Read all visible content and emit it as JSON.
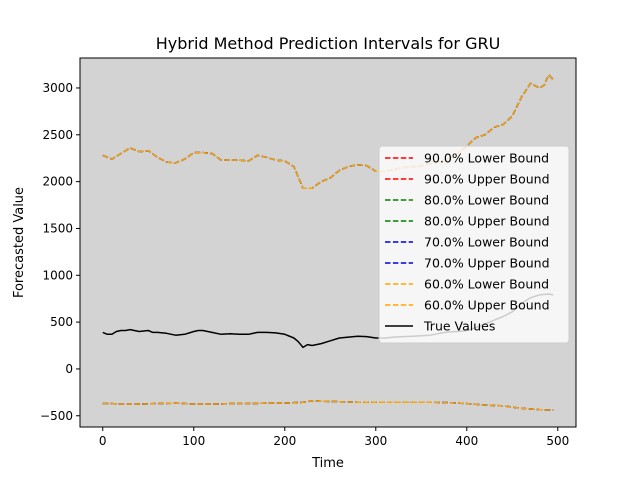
{
  "chart_data": {
    "type": "line",
    "title": "Hybrid Method Prediction Intervals for GRU",
    "xlabel": "Time",
    "ylabel": "Forecasted Value",
    "xlim": [
      -25,
      520
    ],
    "ylim": [
      -620,
      3320
    ],
    "xticks": [
      0,
      100,
      200,
      300,
      400,
      500
    ],
    "yticks": [
      -500,
      0,
      500,
      1000,
      1500,
      2000,
      2500,
      3000
    ],
    "background": "#d3d3d3",
    "grid": false,
    "legend_position": "right",
    "upper_bound_x": [
      0,
      10,
      20,
      30,
      40,
      50,
      60,
      70,
      80,
      90,
      100,
      110,
      120,
      130,
      140,
      150,
      160,
      170,
      180,
      190,
      200,
      210,
      220,
      230,
      240,
      250,
      260,
      270,
      280,
      290,
      300,
      310,
      320,
      330,
      340,
      350,
      360,
      370,
      380,
      390,
      400,
      410,
      420,
      430,
      440,
      450,
      460,
      470,
      480,
      485,
      490,
      495
    ],
    "upper_bound_y": [
      2280,
      2240,
      2300,
      2360,
      2320,
      2330,
      2260,
      2210,
      2200,
      2240,
      2310,
      2310,
      2300,
      2230,
      2230,
      2230,
      2220,
      2280,
      2260,
      2230,
      2220,
      2160,
      1930,
      1930,
      2000,
      2040,
      2120,
      2160,
      2180,
      2170,
      2110,
      2110,
      2130,
      2150,
      2160,
      2170,
      2190,
      2210,
      2240,
      2300,
      2380,
      2470,
      2500,
      2580,
      2610,
      2700,
      2900,
      3050,
      3000,
      3030,
      3140,
      3090
    ],
    "lower_bound_x": [
      0,
      10,
      20,
      40,
      60,
      80,
      100,
      120,
      140,
      160,
      180,
      200,
      220,
      230,
      240,
      260,
      280,
      300,
      320,
      340,
      360,
      380,
      400,
      420,
      440,
      460,
      480,
      495
    ],
    "lower_bound_y": [
      -370,
      -370,
      -375,
      -375,
      -370,
      -365,
      -375,
      -375,
      -370,
      -370,
      -365,
      -365,
      -355,
      -340,
      -345,
      -350,
      -355,
      -355,
      -355,
      -355,
      -355,
      -360,
      -370,
      -385,
      -395,
      -420,
      -435,
      -440
    ],
    "series": [
      {
        "name": "90.0% Lower Bound",
        "color": "#ff0000",
        "style": "dashed",
        "bound": "lower"
      },
      {
        "name": "90.0% Upper Bound",
        "color": "#ff0000",
        "style": "dashed",
        "bound": "upper"
      },
      {
        "name": "80.0% Lower Bound",
        "color": "#008000",
        "style": "dashed",
        "bound": "lower"
      },
      {
        "name": "80.0% Upper Bound",
        "color": "#008000",
        "style": "dashed",
        "bound": "upper"
      },
      {
        "name": "70.0% Lower Bound",
        "color": "#0000cd",
        "style": "dashed",
        "bound": "lower"
      },
      {
        "name": "70.0% Upper Bound",
        "color": "#0000cd",
        "style": "dashed",
        "bound": "upper"
      },
      {
        "name": "60.0% Lower Bound",
        "color": "#ffa500",
        "style": "dashed",
        "bound": "lower"
      },
      {
        "name": "60.0% Upper Bound",
        "color": "#ffa500",
        "style": "dashed",
        "bound": "upper"
      },
      {
        "name": "True Values",
        "color": "#000000",
        "style": "solid",
        "x": [
          0,
          5,
          10,
          15,
          20,
          25,
          30,
          40,
          50,
          55,
          60,
          70,
          80,
          90,
          100,
          105,
          110,
          120,
          130,
          140,
          150,
          160,
          170,
          180,
          190,
          200,
          210,
          215,
          220,
          225,
          230,
          240,
          250,
          260,
          270,
          280,
          290,
          300,
          310,
          320,
          330,
          340,
          350,
          360,
          370,
          380,
          390,
          400,
          410,
          420,
          430,
          440,
          450,
          460,
          470,
          480,
          490,
          495
        ],
        "y": [
          390,
          370,
          370,
          400,
          410,
          410,
          420,
          400,
          410,
          390,
          390,
          380,
          360,
          370,
          400,
          410,
          410,
          390,
          370,
          375,
          370,
          370,
          390,
          390,
          385,
          370,
          330,
          290,
          230,
          260,
          250,
          270,
          300,
          330,
          340,
          350,
          345,
          330,
          330,
          340,
          345,
          350,
          355,
          360,
          380,
          395,
          400,
          410,
          440,
          480,
          520,
          560,
          610,
          700,
          760,
          790,
          800,
          790
        ]
      }
    ]
  }
}
